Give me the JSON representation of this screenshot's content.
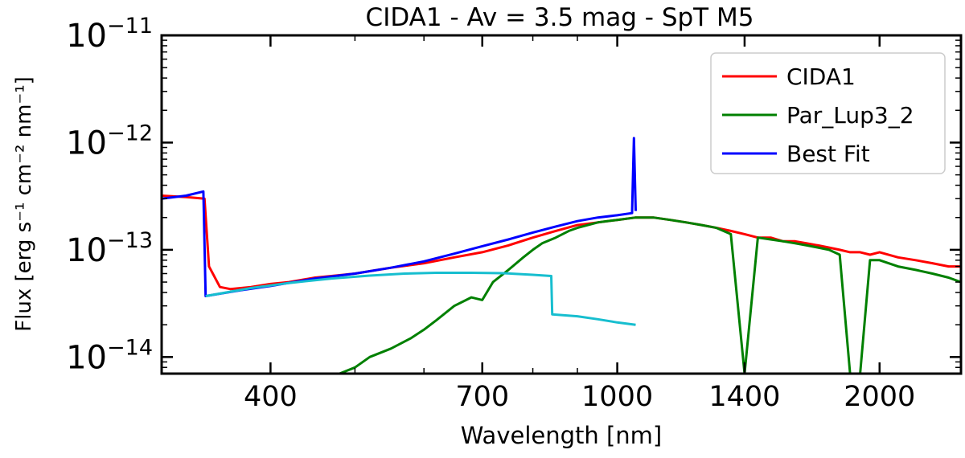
{
  "chart_data": {
    "type": "line",
    "title": "CIDA1 - Av = 3.5 mag - SpT M5",
    "xlabel": "Wavelength [nm]",
    "ylabel": "Flux [erg s⁻¹ cm⁻² nm⁻¹]",
    "x_scale": "log",
    "y_scale": "log",
    "xlim": [
      300,
      2480
    ],
    "ylim": [
      7e-15,
      1e-11
    ],
    "x_ticks": [
      {
        "value": 400,
        "label": "400"
      },
      {
        "value": 700,
        "label": "700"
      },
      {
        "value": 1000,
        "label": "1000"
      },
      {
        "value": 1400,
        "label": "1400"
      },
      {
        "value": 2000,
        "label": "2000"
      }
    ],
    "y_ticks": [
      {
        "value": 1e-14,
        "base": "10",
        "exp": "−14"
      },
      {
        "value": 1e-13,
        "base": "10",
        "exp": "−13"
      },
      {
        "value": 1e-12,
        "base": "10",
        "exp": "−12"
      },
      {
        "value": 1e-11,
        "base": "10",
        "exp": "−11"
      }
    ],
    "legend": {
      "position": "top-right",
      "entries": [
        "CIDA1",
        "Par_Lup3_2",
        "Best Fit"
      ]
    },
    "grid": false,
    "series": [
      {
        "name": "CIDA1",
        "color": "#ff0000",
        "x": [
          300,
          320,
          336,
          340,
          350,
          360,
          380,
          400,
          420,
          450,
          480,
          500,
          550,
          600,
          650,
          700,
          750,
          800,
          850,
          900,
          950,
          1000,
          1050,
          1100,
          1150,
          1200,
          1250,
          1300,
          1350,
          1400,
          1450,
          1500,
          1550,
          1600,
          1650,
          1700,
          1750,
          1800,
          1850,
          1900,
          1950,
          2000,
          2100,
          2200,
          2300,
          2400,
          2480
        ],
        "y": [
          3.2e-13,
          3.1e-13,
          3e-13,
          7e-14,
          4.5e-14,
          4.3e-14,
          4.5e-14,
          4.8e-14,
          5e-14,
          5.5e-14,
          5.8e-14,
          6e-14,
          6.8e-14,
          7.5e-14,
          8.5e-14,
          9.5e-14,
          1.1e-13,
          1.3e-13,
          1.5e-13,
          1.7e-13,
          1.8e-13,
          1.9e-13,
          2e-13,
          2e-13,
          1.9e-13,
          1.8e-13,
          1.7e-13,
          1.6e-13,
          1.5e-13,
          1.4e-13,
          1.3e-13,
          1.3e-13,
          1.2e-13,
          1.2e-13,
          1.15e-13,
          1.1e-13,
          1.05e-13,
          1e-13,
          9.5e-14,
          9.5e-14,
          9e-14,
          9.5e-14,
          8.5e-14,
          8e-14,
          7.5e-14,
          7e-14,
          7e-14
        ]
      },
      {
        "name": "Par_Lup3_2",
        "color": "#008000",
        "x": [
          480,
          500,
          520,
          550,
          580,
          600,
          620,
          650,
          680,
          700,
          720,
          750,
          780,
          800,
          820,
          850,
          880,
          900,
          950,
          1000,
          1050,
          1100,
          1150,
          1200,
          1250,
          1300,
          1350,
          1400,
          1450,
          1500,
          1550,
          1600,
          1650,
          1700,
          1750,
          1800,
          1850,
          1900,
          1950,
          2000,
          2100,
          2200,
          2300,
          2400,
          2480
        ],
        "y": [
          7e-15,
          8e-15,
          1e-14,
          1.2e-14,
          1.5e-14,
          1.8e-14,
          2.2e-14,
          3e-14,
          3.6e-14,
          3.4e-14,
          5e-14,
          6.5e-14,
          8.5e-14,
          1e-13,
          1.15e-13,
          1.3e-13,
          1.5e-13,
          1.6e-13,
          1.8e-13,
          1.9e-13,
          2e-13,
          2e-13,
          1.9e-13,
          1.8e-13,
          1.7e-13,
          1.6e-13,
          1.4e-13,
          7e-15,
          1.3e-13,
          1.25e-13,
          1.2e-13,
          1.15e-13,
          1.1e-13,
          1.05e-13,
          1e-13,
          9e-14,
          7e-15,
          7e-15,
          8e-14,
          8e-14,
          7e-14,
          6.5e-14,
          6e-14,
          5.5e-14,
          5e-14
        ]
      },
      {
        "name": "Best Fit",
        "color": "#0000ff",
        "x": [
          300,
          320,
          335,
          337,
          350,
          370,
          400,
          450,
          500,
          550,
          600,
          650,
          700,
          750,
          800,
          850,
          900,
          950,
          1000,
          1040,
          1045,
          1050
        ],
        "y": [
          3e-13,
          3.2e-13,
          3.5e-13,
          3.7e-14,
          3.9e-14,
          4.2e-14,
          4.6e-14,
          5.4e-14,
          6e-14,
          6.8e-14,
          7.8e-14,
          9.2e-14,
          1.08e-13,
          1.25e-13,
          1.45e-13,
          1.65e-13,
          1.85e-13,
          2e-13,
          2.1e-13,
          2.2e-13,
          1.1e-12,
          2.3e-13
        ]
      },
      {
        "color": "#17becf",
        "x": [
          337,
          380,
          420,
          470,
          520,
          570,
          620,
          680,
          740,
          800,
          840,
          842,
          900,
          950,
          1000,
          1050
        ],
        "y": [
          3.7e-14,
          4.4e-14,
          4.9e-14,
          5.4e-14,
          5.75e-14,
          6e-14,
          6.1e-14,
          6.1e-14,
          6.05e-14,
          5.85e-14,
          5.7e-14,
          2.5e-14,
          2.4e-14,
          2.25e-14,
          2.1e-14,
          2e-14
        ]
      }
    ]
  }
}
